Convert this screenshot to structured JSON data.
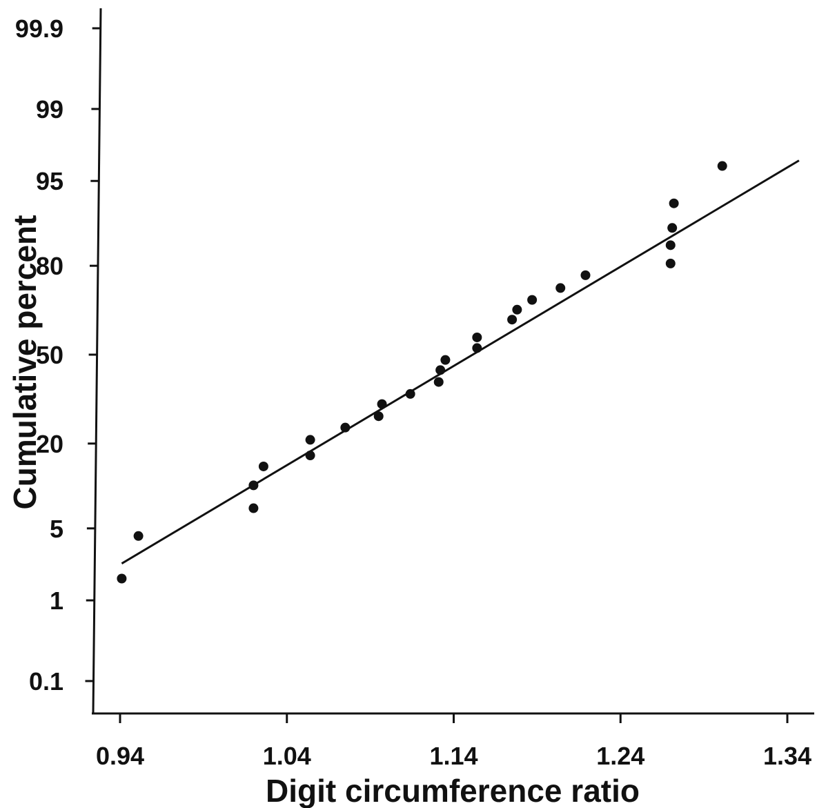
{
  "chart_data": {
    "type": "scatter",
    "title": "",
    "xlabel": "Digit circumference ratio",
    "ylabel": "Cumulative percent",
    "x_ticks": [
      {
        "value": 0.94,
        "label": "0.94"
      },
      {
        "value": 1.04,
        "label": "1.04"
      },
      {
        "value": 1.14,
        "label": "1.14"
      },
      {
        "value": 1.24,
        "label": "1.24"
      },
      {
        "value": 1.34,
        "label": "1.34"
      }
    ],
    "y_scale": "probability",
    "y_ticks": [
      {
        "value": 0.1,
        "label": "0.1"
      },
      {
        "value": 1,
        "label": "1"
      },
      {
        "value": 5,
        "label": "5"
      },
      {
        "value": 20,
        "label": "20"
      },
      {
        "value": 50,
        "label": "50"
      },
      {
        "value": 80,
        "label": "80"
      },
      {
        "value": 95,
        "label": "95"
      },
      {
        "value": 99,
        "label": "99"
      },
      {
        "value": 99.9,
        "label": "99.9"
      }
    ],
    "xlim": [
      0.923,
      1.345
    ],
    "ylim": [
      0.05,
      99.95
    ],
    "grid": false,
    "legend": "none",
    "points": [
      {
        "x": 0.941,
        "y": 1.7
      },
      {
        "x": 0.951,
        "y": 4.3
      },
      {
        "x": 1.02,
        "y": 7.3
      },
      {
        "x": 1.02,
        "y": 10.8
      },
      {
        "x": 1.026,
        "y": 14.5
      },
      {
        "x": 1.054,
        "y": 17.0
      },
      {
        "x": 1.054,
        "y": 21.0
      },
      {
        "x": 1.075,
        "y": 24.5
      },
      {
        "x": 1.095,
        "y": 28.0
      },
      {
        "x": 1.097,
        "y": 32.0
      },
      {
        "x": 1.114,
        "y": 35.5
      },
      {
        "x": 1.131,
        "y": 39.8
      },
      {
        "x": 1.132,
        "y": 44.2
      },
      {
        "x": 1.135,
        "y": 48.0
      },
      {
        "x": 1.154,
        "y": 52.5
      },
      {
        "x": 1.154,
        "y": 56.5
      },
      {
        "x": 1.175,
        "y": 63.0
      },
      {
        "x": 1.178,
        "y": 66.5
      },
      {
        "x": 1.187,
        "y": 69.8
      },
      {
        "x": 1.204,
        "y": 73.6
      },
      {
        "x": 1.219,
        "y": 77.4
      },
      {
        "x": 1.27,
        "y": 80.6
      },
      {
        "x": 1.27,
        "y": 85.0
      },
      {
        "x": 1.271,
        "y": 88.5
      },
      {
        "x": 1.272,
        "y": 92.4
      },
      {
        "x": 1.301,
        "y": 96.3
      }
    ],
    "fit_line": [
      {
        "x": 0.941,
        "y": 2.4
      },
      {
        "x": 1.347,
        "y": 96.7
      }
    ],
    "colors": {
      "axis": "#111111",
      "points": "#111111",
      "line": "#111111"
    }
  }
}
